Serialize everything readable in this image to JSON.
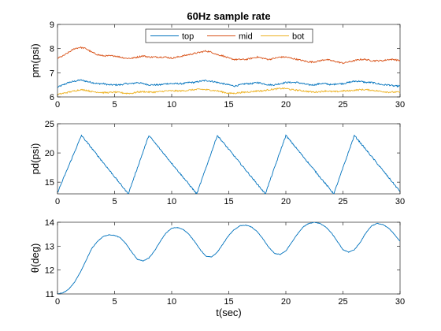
{
  "chart_data": [
    {
      "type": "line",
      "title": "60Hz sample rate",
      "xlabel": "",
      "ylabel": "pm(psi)",
      "xlim": [
        0,
        30
      ],
      "ylim": [
        6,
        9
      ],
      "xticks": [
        0,
        5,
        10,
        15,
        20,
        25,
        30
      ],
      "yticks": [
        6,
        7,
        8,
        9
      ],
      "legend": {
        "placement": "top-center",
        "orientation": "horizontal"
      },
      "series": [
        {
          "name": "top",
          "color": "#0072BD",
          "x": [
            0,
            0.5,
            1,
            1.5,
            2,
            2.5,
            3,
            3.5,
            4,
            4.5,
            5,
            5.5,
            6,
            6.5,
            7,
            7.5,
            8,
            8.5,
            9,
            9.5,
            10,
            10.5,
            11,
            11.5,
            12,
            12.5,
            13,
            13.5,
            14,
            14.5,
            15,
            15.5,
            16,
            16.5,
            17,
            17.5,
            18,
            18.5,
            19,
            19.5,
            20,
            20.5,
            21,
            21.5,
            22,
            22.5,
            23,
            23.5,
            24,
            24.5,
            25,
            25.5,
            26,
            26.5,
            27,
            27.5,
            28,
            28.5,
            29,
            29.5,
            30
          ],
          "y": [
            6.4,
            6.5,
            6.6,
            6.65,
            6.7,
            6.65,
            6.6,
            6.55,
            6.55,
            6.5,
            6.5,
            6.5,
            6.55,
            6.55,
            6.6,
            6.55,
            6.5,
            6.5,
            6.5,
            6.55,
            6.55,
            6.55,
            6.55,
            6.6,
            6.6,
            6.65,
            6.68,
            6.65,
            6.6,
            6.55,
            6.5,
            6.45,
            6.5,
            6.55,
            6.55,
            6.6,
            6.55,
            6.5,
            6.5,
            6.55,
            6.6,
            6.6,
            6.6,
            6.55,
            6.5,
            6.5,
            6.55,
            6.55,
            6.5,
            6.55,
            6.55,
            6.6,
            6.65,
            6.65,
            6.6,
            6.6,
            6.55,
            6.5,
            6.5,
            6.45,
            6.45
          ]
        },
        {
          "name": "mid",
          "color": "#D95319",
          "x": [
            0,
            0.5,
            1,
            1.5,
            2,
            2.5,
            3,
            3.5,
            4,
            4.5,
            5,
            5.5,
            6,
            6.5,
            7,
            7.5,
            8,
            8.5,
            9,
            9.5,
            10,
            10.5,
            11,
            11.5,
            12,
            12.5,
            13,
            13.5,
            14,
            14.5,
            15,
            15.5,
            16,
            16.5,
            17,
            17.5,
            18,
            18.5,
            19,
            19.5,
            20,
            20.5,
            21,
            21.5,
            22,
            22.5,
            23,
            23.5,
            24,
            24.5,
            25,
            25.5,
            26,
            26.5,
            27,
            27.5,
            28,
            28.5,
            29,
            29.5,
            30
          ],
          "y": [
            7.6,
            7.7,
            7.85,
            8.0,
            8.05,
            8.0,
            7.85,
            7.75,
            7.7,
            7.7,
            7.7,
            7.65,
            7.6,
            7.6,
            7.65,
            7.7,
            7.65,
            7.65,
            7.65,
            7.65,
            7.6,
            7.65,
            7.7,
            7.75,
            7.8,
            7.85,
            7.9,
            7.85,
            7.75,
            7.7,
            7.6,
            7.55,
            7.55,
            7.55,
            7.6,
            7.65,
            7.6,
            7.55,
            7.6,
            7.65,
            7.65,
            7.6,
            7.55,
            7.5,
            7.45,
            7.45,
            7.5,
            7.55,
            7.5,
            7.45,
            7.4,
            7.45,
            7.5,
            7.55,
            7.55,
            7.5,
            7.5,
            7.5,
            7.55,
            7.55,
            7.5
          ]
        },
        {
          "name": "bot",
          "color": "#EDB120",
          "x": [
            0,
            0.5,
            1,
            1.5,
            2,
            2.5,
            3,
            3.5,
            4,
            4.5,
            5,
            5.5,
            6,
            6.5,
            7,
            7.5,
            8,
            8.5,
            9,
            9.5,
            10,
            10.5,
            11,
            11.5,
            12,
            12.5,
            13,
            13.5,
            14,
            14.5,
            15,
            15.5,
            16,
            16.5,
            17,
            17.5,
            18,
            18.5,
            19,
            19.5,
            20,
            20.5,
            21,
            21.5,
            22,
            22.5,
            23,
            23.5,
            24,
            24.5,
            25,
            25.5,
            26,
            26.5,
            27,
            27.5,
            28,
            28.5,
            29,
            29.5,
            30
          ],
          "y": [
            6.1,
            6.15,
            6.2,
            6.25,
            6.3,
            6.28,
            6.22,
            6.2,
            6.18,
            6.18,
            6.2,
            6.18,
            6.15,
            6.15,
            6.2,
            6.22,
            6.2,
            6.2,
            6.22,
            6.25,
            6.25,
            6.25,
            6.25,
            6.28,
            6.3,
            6.32,
            6.3,
            6.28,
            6.25,
            6.2,
            6.15,
            6.15,
            6.18,
            6.2,
            6.22,
            6.25,
            6.25,
            6.3,
            6.32,
            6.35,
            6.35,
            6.3,
            6.28,
            6.25,
            6.22,
            6.2,
            6.22,
            6.25,
            6.22,
            6.22,
            6.25,
            6.25,
            6.28,
            6.3,
            6.3,
            6.28,
            6.25,
            6.22,
            6.2,
            6.2,
            6.2
          ]
        }
      ]
    },
    {
      "type": "line",
      "title": "",
      "xlabel": "",
      "ylabel": "pd(psi)",
      "xlim": [
        0,
        30
      ],
      "ylim": [
        13,
        25
      ],
      "xticks": [
        0,
        5,
        10,
        15,
        20,
        25,
        30
      ],
      "yticks": [
        15,
        20,
        25
      ],
      "series": [
        {
          "color": "#0072BD",
          "x": [
            0,
            2.1,
            6.2,
            8.0,
            12.2,
            14.0,
            18.2,
            20.0,
            24.2,
            26.0,
            30
          ],
          "y": [
            13.2,
            23.0,
            13.0,
            23.0,
            13.0,
            23.0,
            13.0,
            23.0,
            13.0,
            23.0,
            13.4
          ]
        }
      ]
    },
    {
      "type": "line",
      "title": "",
      "xlabel": "t(sec)",
      "ylabel": "θ(deg)",
      "xlim": [
        0,
        30
      ],
      "ylim": [
        11,
        14
      ],
      "xticks": [
        0,
        5,
        10,
        15,
        20,
        25,
        30
      ],
      "yticks": [
        11,
        12,
        13,
        14
      ],
      "series": [
        {
          "color": "#0072BD",
          "x": [
            0,
            0.5,
            1,
            1.5,
            2,
            2.5,
            3,
            3.5,
            4,
            4.5,
            5,
            5.5,
            6,
            6.5,
            7,
            7.5,
            8,
            8.5,
            9,
            9.5,
            10,
            10.5,
            11,
            11.5,
            12,
            12.5,
            13,
            13.5,
            14,
            14.5,
            15,
            15.5,
            16,
            16.5,
            17,
            17.5,
            18,
            18.5,
            19,
            19.5,
            20,
            20.5,
            21,
            21.5,
            22,
            22.5,
            23,
            23.5,
            24,
            24.5,
            25,
            25.5,
            26,
            26.5,
            27,
            27.5,
            28,
            28.5,
            29,
            29.5,
            30
          ],
          "y": [
            11.0,
            11.05,
            11.2,
            11.5,
            11.9,
            12.4,
            12.9,
            13.2,
            13.4,
            13.48,
            13.45,
            13.35,
            13.1,
            12.75,
            12.45,
            12.38,
            12.5,
            12.8,
            13.2,
            13.55,
            13.75,
            13.78,
            13.7,
            13.5,
            13.2,
            12.85,
            12.58,
            12.55,
            12.75,
            13.1,
            13.45,
            13.7,
            13.85,
            13.88,
            13.8,
            13.6,
            13.3,
            12.95,
            12.7,
            12.65,
            12.8,
            13.15,
            13.5,
            13.8,
            13.95,
            14.0,
            13.95,
            13.8,
            13.55,
            13.2,
            12.85,
            12.75,
            12.85,
            13.15,
            13.55,
            13.85,
            13.95,
            13.9,
            13.75,
            13.5,
            13.2
          ]
        }
      ]
    }
  ]
}
